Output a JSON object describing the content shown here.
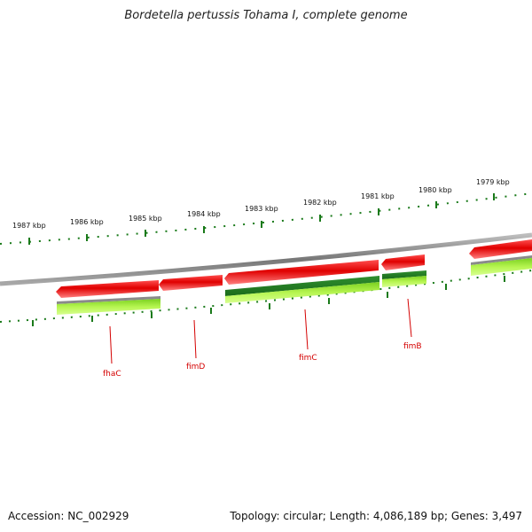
{
  "title": "Bordetella pertussis Tohama I, complete genome",
  "accession_label": "Accession: NC_002929",
  "summary": "Topology: circular; Length: 4,086,189 bp; Genes: 3,497",
  "scale_labels": [
    "1987 kbp",
    "1986 kbp",
    "1985 kbp",
    "1984 kbp",
    "1983 kbp",
    "1982 kbp",
    "1981 kbp",
    "1980 kbp",
    "1979 kbp"
  ],
  "gene_labels": [
    "fhaC",
    "fimD",
    "fimC",
    "fimB"
  ],
  "colors": {
    "forward_gene": "#e00000",
    "reverse_gene": "#1e7a1e",
    "cds_light": "#a8f040",
    "backbone": "#888888",
    "ticks": "#1a7a1a",
    "label": "#d40000"
  }
}
